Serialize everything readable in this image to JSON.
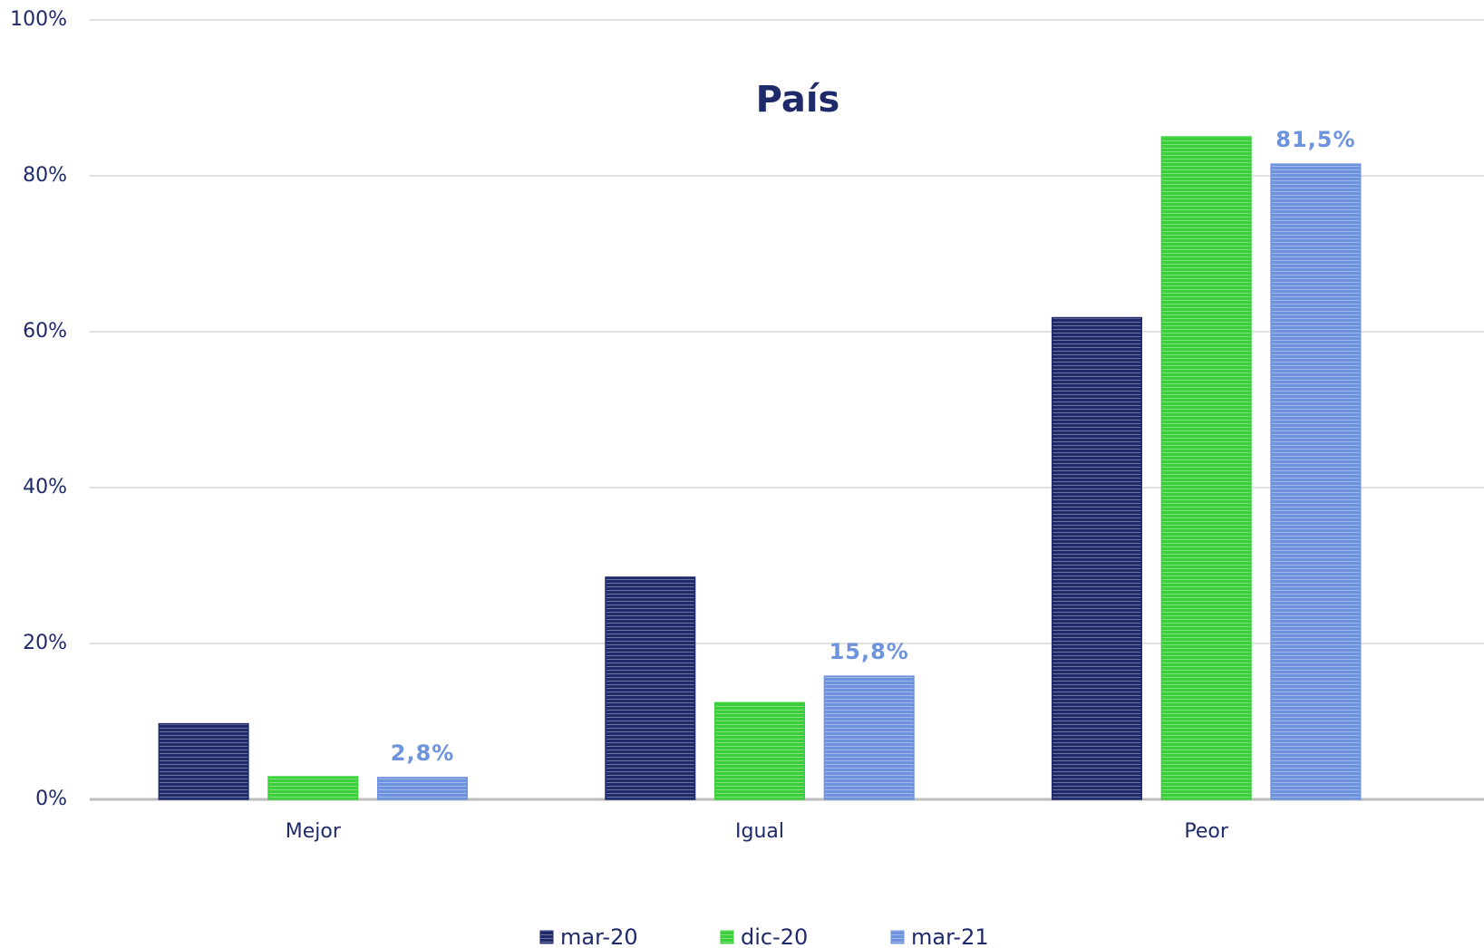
{
  "chart_data": {
    "type": "bar",
    "title": "País",
    "categories": [
      "Mejor",
      "Igual",
      "Peor"
    ],
    "series": [
      {
        "name": "mar-20",
        "color": "#1f2a6b",
        "values": [
          9.7,
          28.5,
          61.8
        ]
      },
      {
        "name": "dic-20",
        "color": "#3ccf3c",
        "values": [
          2.9,
          12.4,
          85.0
        ]
      },
      {
        "name": "mar-21",
        "color": "#6e93dd",
        "values": [
          2.8,
          15.8,
          81.5
        ],
        "value_labels": [
          "2,8%",
          "15,8%",
          "81,5%"
        ]
      }
    ],
    "ylim": [
      0,
      100
    ],
    "yticks": [
      {
        "value": 0,
        "label": "0%"
      },
      {
        "value": 20,
        "label": "20%"
      },
      {
        "value": 40,
        "label": "40%"
      },
      {
        "value": 60,
        "label": "60%"
      },
      {
        "value": 80,
        "label": "80%"
      },
      {
        "value": 100,
        "label": "100%"
      }
    ],
    "grid": true,
    "legend": "bottom"
  }
}
